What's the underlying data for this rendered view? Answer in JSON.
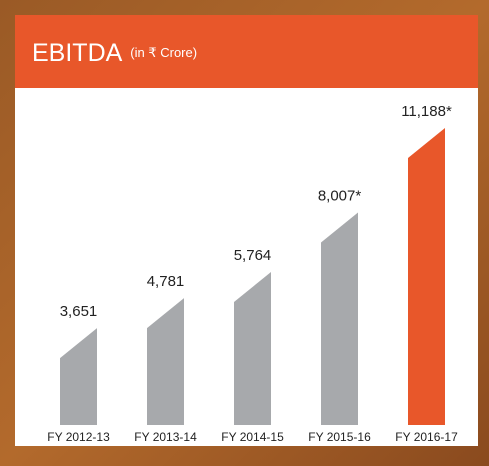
{
  "chart_data": {
    "type": "bar",
    "title": "EBITDA",
    "subtitle": "(in ₹ Crore)",
    "categories": [
      "FY 2012-13",
      "FY 2013-14",
      "FY 2014-15",
      "FY 2015-16",
      "FY 2016-17"
    ],
    "values": [
      3651,
      4781,
      5764,
      8007,
      11188
    ],
    "value_labels": [
      "3,651",
      "4,781",
      "5,764",
      "8,007*",
      "11,188*"
    ],
    "colors": [
      "#a7a9ac",
      "#a7a9ac",
      "#a7a9ac",
      "#a7a9ac",
      "#e8572a"
    ]
  }
}
